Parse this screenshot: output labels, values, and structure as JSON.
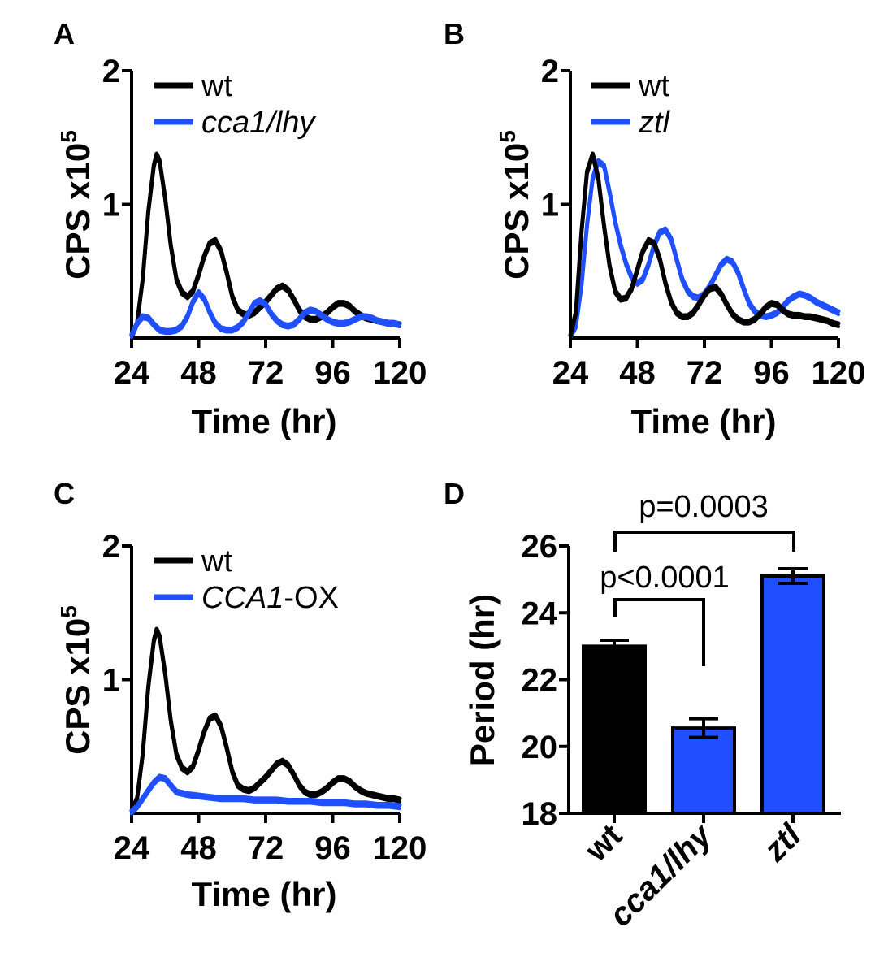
{
  "colors": {
    "wt": "#000000",
    "mutant": "#1f4fff",
    "axis": "#000000"
  },
  "chart_data": [
    {
      "panel": "A",
      "type": "line",
      "xlabel": "Time (hr)",
      "ylabel_main": "CPS x10",
      "ylabel_exp": "5",
      "xlim": [
        24,
        120
      ],
      "ylim": [
        0,
        2
      ],
      "xticks": [
        "24",
        "48",
        "72",
        "96",
        "120"
      ],
      "xtick_values": [
        24,
        48,
        72,
        96,
        120
      ],
      "yticks": [
        "1",
        "2"
      ],
      "ytick_values": [
        1,
        2
      ],
      "legend": [
        {
          "label": "wt",
          "color_key": "wt",
          "italic": false
        },
        {
          "label": "cca1/lhy",
          "color_key": "mutant",
          "italic": true
        }
      ],
      "series": [
        {
          "name": "wt",
          "color_key": "wt",
          "x": [
            24,
            26,
            28,
            30,
            32,
            33,
            34,
            36,
            38,
            40,
            42,
            44,
            46,
            48,
            50,
            52,
            54,
            56,
            58,
            60,
            62,
            64,
            66,
            68,
            70,
            72,
            74,
            76,
            78,
            80,
            82,
            84,
            86,
            88,
            90,
            92,
            94,
            96,
            98,
            100,
            102,
            104,
            106,
            108,
            110,
            112,
            114,
            116,
            118,
            120
          ],
          "values": [
            0.02,
            0.12,
            0.45,
            0.95,
            1.3,
            1.38,
            1.33,
            1.05,
            0.7,
            0.45,
            0.35,
            0.32,
            0.36,
            0.48,
            0.62,
            0.72,
            0.74,
            0.66,
            0.5,
            0.32,
            0.22,
            0.19,
            0.18,
            0.2,
            0.24,
            0.28,
            0.33,
            0.38,
            0.4,
            0.37,
            0.3,
            0.22,
            0.17,
            0.15,
            0.15,
            0.17,
            0.2,
            0.24,
            0.27,
            0.27,
            0.25,
            0.21,
            0.18,
            0.16,
            0.15,
            0.14,
            0.13,
            0.12,
            0.12,
            0.11
          ]
        },
        {
          "name": "cca1/lhy",
          "color_key": "mutant",
          "x": [
            24,
            26,
            28,
            30,
            32,
            34,
            36,
            38,
            40,
            42,
            44,
            46,
            48,
            50,
            52,
            54,
            56,
            58,
            60,
            62,
            64,
            66,
            68,
            70,
            72,
            74,
            76,
            78,
            80,
            82,
            84,
            86,
            88,
            90,
            92,
            94,
            96,
            98,
            100,
            102,
            104,
            106,
            108,
            110,
            112,
            114,
            116,
            118,
            120
          ],
          "values": [
            0.03,
            0.12,
            0.17,
            0.16,
            0.11,
            0.07,
            0.06,
            0.06,
            0.07,
            0.1,
            0.17,
            0.28,
            0.35,
            0.3,
            0.2,
            0.12,
            0.08,
            0.07,
            0.07,
            0.09,
            0.13,
            0.2,
            0.27,
            0.29,
            0.26,
            0.19,
            0.14,
            0.11,
            0.1,
            0.11,
            0.15,
            0.2,
            0.22,
            0.21,
            0.18,
            0.15,
            0.13,
            0.12,
            0.12,
            0.13,
            0.15,
            0.17,
            0.17,
            0.16,
            0.14,
            0.13,
            0.12,
            0.12,
            0.11
          ]
        }
      ]
    },
    {
      "panel": "B",
      "type": "line",
      "xlabel": "Time (hr)",
      "ylabel_main": "CPS x10",
      "ylabel_exp": "5",
      "xlim": [
        24,
        120
      ],
      "ylim": [
        0,
        2
      ],
      "xticks": [
        "24",
        "48",
        "72",
        "96",
        "120"
      ],
      "xtick_values": [
        24,
        48,
        72,
        96,
        120
      ],
      "yticks": [
        "1",
        "2"
      ],
      "ytick_values": [
        1,
        2
      ],
      "legend": [
        {
          "label": "wt",
          "color_key": "wt",
          "italic": false
        },
        {
          "label": "ztl",
          "color_key": "mutant",
          "italic": true
        }
      ],
      "series": [
        {
          "name": "ztl",
          "color_key": "mutant",
          "x": [
            24,
            26,
            28,
            30,
            32,
            34,
            36,
            38,
            40,
            42,
            44,
            46,
            48,
            50,
            52,
            54,
            56,
            58,
            60,
            62,
            64,
            66,
            68,
            70,
            72,
            74,
            76,
            78,
            80,
            82,
            84,
            86,
            88,
            90,
            92,
            94,
            96,
            98,
            100,
            102,
            104,
            106,
            108,
            110,
            112,
            114,
            116,
            118,
            120
          ],
          "values": [
            0.02,
            0.1,
            0.4,
            0.85,
            1.2,
            1.33,
            1.3,
            1.1,
            0.88,
            0.7,
            0.56,
            0.46,
            0.42,
            0.45,
            0.56,
            0.7,
            0.8,
            0.82,
            0.75,
            0.6,
            0.45,
            0.36,
            0.32,
            0.31,
            0.34,
            0.4,
            0.48,
            0.56,
            0.6,
            0.58,
            0.5,
            0.38,
            0.27,
            0.21,
            0.18,
            0.17,
            0.18,
            0.2,
            0.24,
            0.29,
            0.32,
            0.34,
            0.33,
            0.31,
            0.28,
            0.26,
            0.24,
            0.22,
            0.2
          ]
        },
        {
          "name": "wt",
          "color_key": "wt",
          "x": [
            24,
            26,
            28,
            30,
            32,
            34,
            36,
            38,
            40,
            42,
            44,
            46,
            48,
            50,
            52,
            54,
            56,
            58,
            60,
            62,
            64,
            66,
            68,
            70,
            72,
            74,
            76,
            78,
            80,
            82,
            84,
            86,
            88,
            90,
            92,
            94,
            96,
            98,
            100,
            102,
            104,
            106,
            108,
            110,
            112,
            114,
            116,
            118,
            120
          ],
          "values": [
            0.02,
            0.2,
            0.8,
            1.25,
            1.38,
            1.2,
            0.85,
            0.55,
            0.36,
            0.3,
            0.31,
            0.38,
            0.52,
            0.66,
            0.74,
            0.72,
            0.6,
            0.42,
            0.28,
            0.2,
            0.17,
            0.17,
            0.2,
            0.26,
            0.33,
            0.38,
            0.39,
            0.34,
            0.26,
            0.19,
            0.15,
            0.13,
            0.13,
            0.15,
            0.19,
            0.24,
            0.27,
            0.26,
            0.22,
            0.19,
            0.18,
            0.18,
            0.17,
            0.17,
            0.16,
            0.15,
            0.14,
            0.12,
            0.11
          ]
        }
      ]
    },
    {
      "panel": "C",
      "type": "line",
      "xlabel": "Time (hr)",
      "ylabel_main": "CPS x10",
      "ylabel_exp": "5",
      "xlim": [
        24,
        120
      ],
      "ylim": [
        0,
        2
      ],
      "xticks": [
        "24",
        "48",
        "72",
        "96",
        "120"
      ],
      "xtick_values": [
        24,
        48,
        72,
        96,
        120
      ],
      "yticks": [
        "1",
        "2"
      ],
      "ytick_values": [
        1,
        2
      ],
      "legend": [
        {
          "label": "wt",
          "color_key": "wt",
          "italic": false
        },
        {
          "label_italic": "CCA1",
          "label_rest": "-OX",
          "color_key": "mutant"
        }
      ],
      "series": [
        {
          "name": "wt",
          "color_key": "wt",
          "x": [
            24,
            26,
            28,
            30,
            32,
            33,
            34,
            36,
            38,
            40,
            42,
            44,
            46,
            48,
            50,
            52,
            54,
            56,
            58,
            60,
            62,
            64,
            66,
            68,
            70,
            72,
            74,
            76,
            78,
            80,
            82,
            84,
            86,
            88,
            90,
            92,
            94,
            96,
            98,
            100,
            102,
            104,
            106,
            108,
            110,
            112,
            114,
            116,
            118,
            120
          ],
          "values": [
            0.02,
            0.12,
            0.45,
            0.95,
            1.3,
            1.38,
            1.33,
            1.05,
            0.7,
            0.45,
            0.35,
            0.32,
            0.36,
            0.48,
            0.62,
            0.72,
            0.74,
            0.66,
            0.5,
            0.32,
            0.22,
            0.19,
            0.18,
            0.2,
            0.24,
            0.28,
            0.33,
            0.38,
            0.4,
            0.37,
            0.3,
            0.22,
            0.17,
            0.15,
            0.15,
            0.17,
            0.2,
            0.24,
            0.27,
            0.27,
            0.25,
            0.21,
            0.18,
            0.16,
            0.15,
            0.14,
            0.13,
            0.12,
            0.12,
            0.11
          ]
        },
        {
          "name": "CCA1-OX",
          "color_key": "mutant",
          "x": [
            24,
            26,
            28,
            30,
            32,
            34,
            36,
            38,
            40,
            44,
            48,
            52,
            56,
            60,
            64,
            68,
            72,
            76,
            80,
            84,
            88,
            92,
            96,
            100,
            104,
            108,
            112,
            116,
            120
          ],
          "values": [
            0.02,
            0.06,
            0.12,
            0.18,
            0.24,
            0.28,
            0.27,
            0.22,
            0.17,
            0.15,
            0.14,
            0.13,
            0.12,
            0.12,
            0.12,
            0.11,
            0.11,
            0.11,
            0.1,
            0.1,
            0.1,
            0.09,
            0.09,
            0.09,
            0.08,
            0.08,
            0.07,
            0.07,
            0.06
          ]
        }
      ]
    },
    {
      "panel": "D",
      "type": "bar",
      "ylabel": "Period (hr)",
      "ylim": [
        18,
        26
      ],
      "yticks": [
        "18",
        "20",
        "22",
        "24",
        "26"
      ],
      "ytick_values": [
        18,
        20,
        22,
        24,
        26
      ],
      "categories": [
        "wt",
        "cca1/lhy",
        "ztl"
      ],
      "category_italic": [
        false,
        true,
        true
      ],
      "values": [
        23.0,
        20.55,
        25.1
      ],
      "errors": [
        0.18,
        0.28,
        0.22
      ],
      "bar_color_keys": [
        "wt",
        "mutant",
        "mutant"
      ],
      "comparisons": [
        {
          "between": [
            0,
            1
          ],
          "label": "p<0.0001"
        },
        {
          "between": [
            0,
            2
          ],
          "label": "p=0.0003"
        }
      ]
    }
  ]
}
